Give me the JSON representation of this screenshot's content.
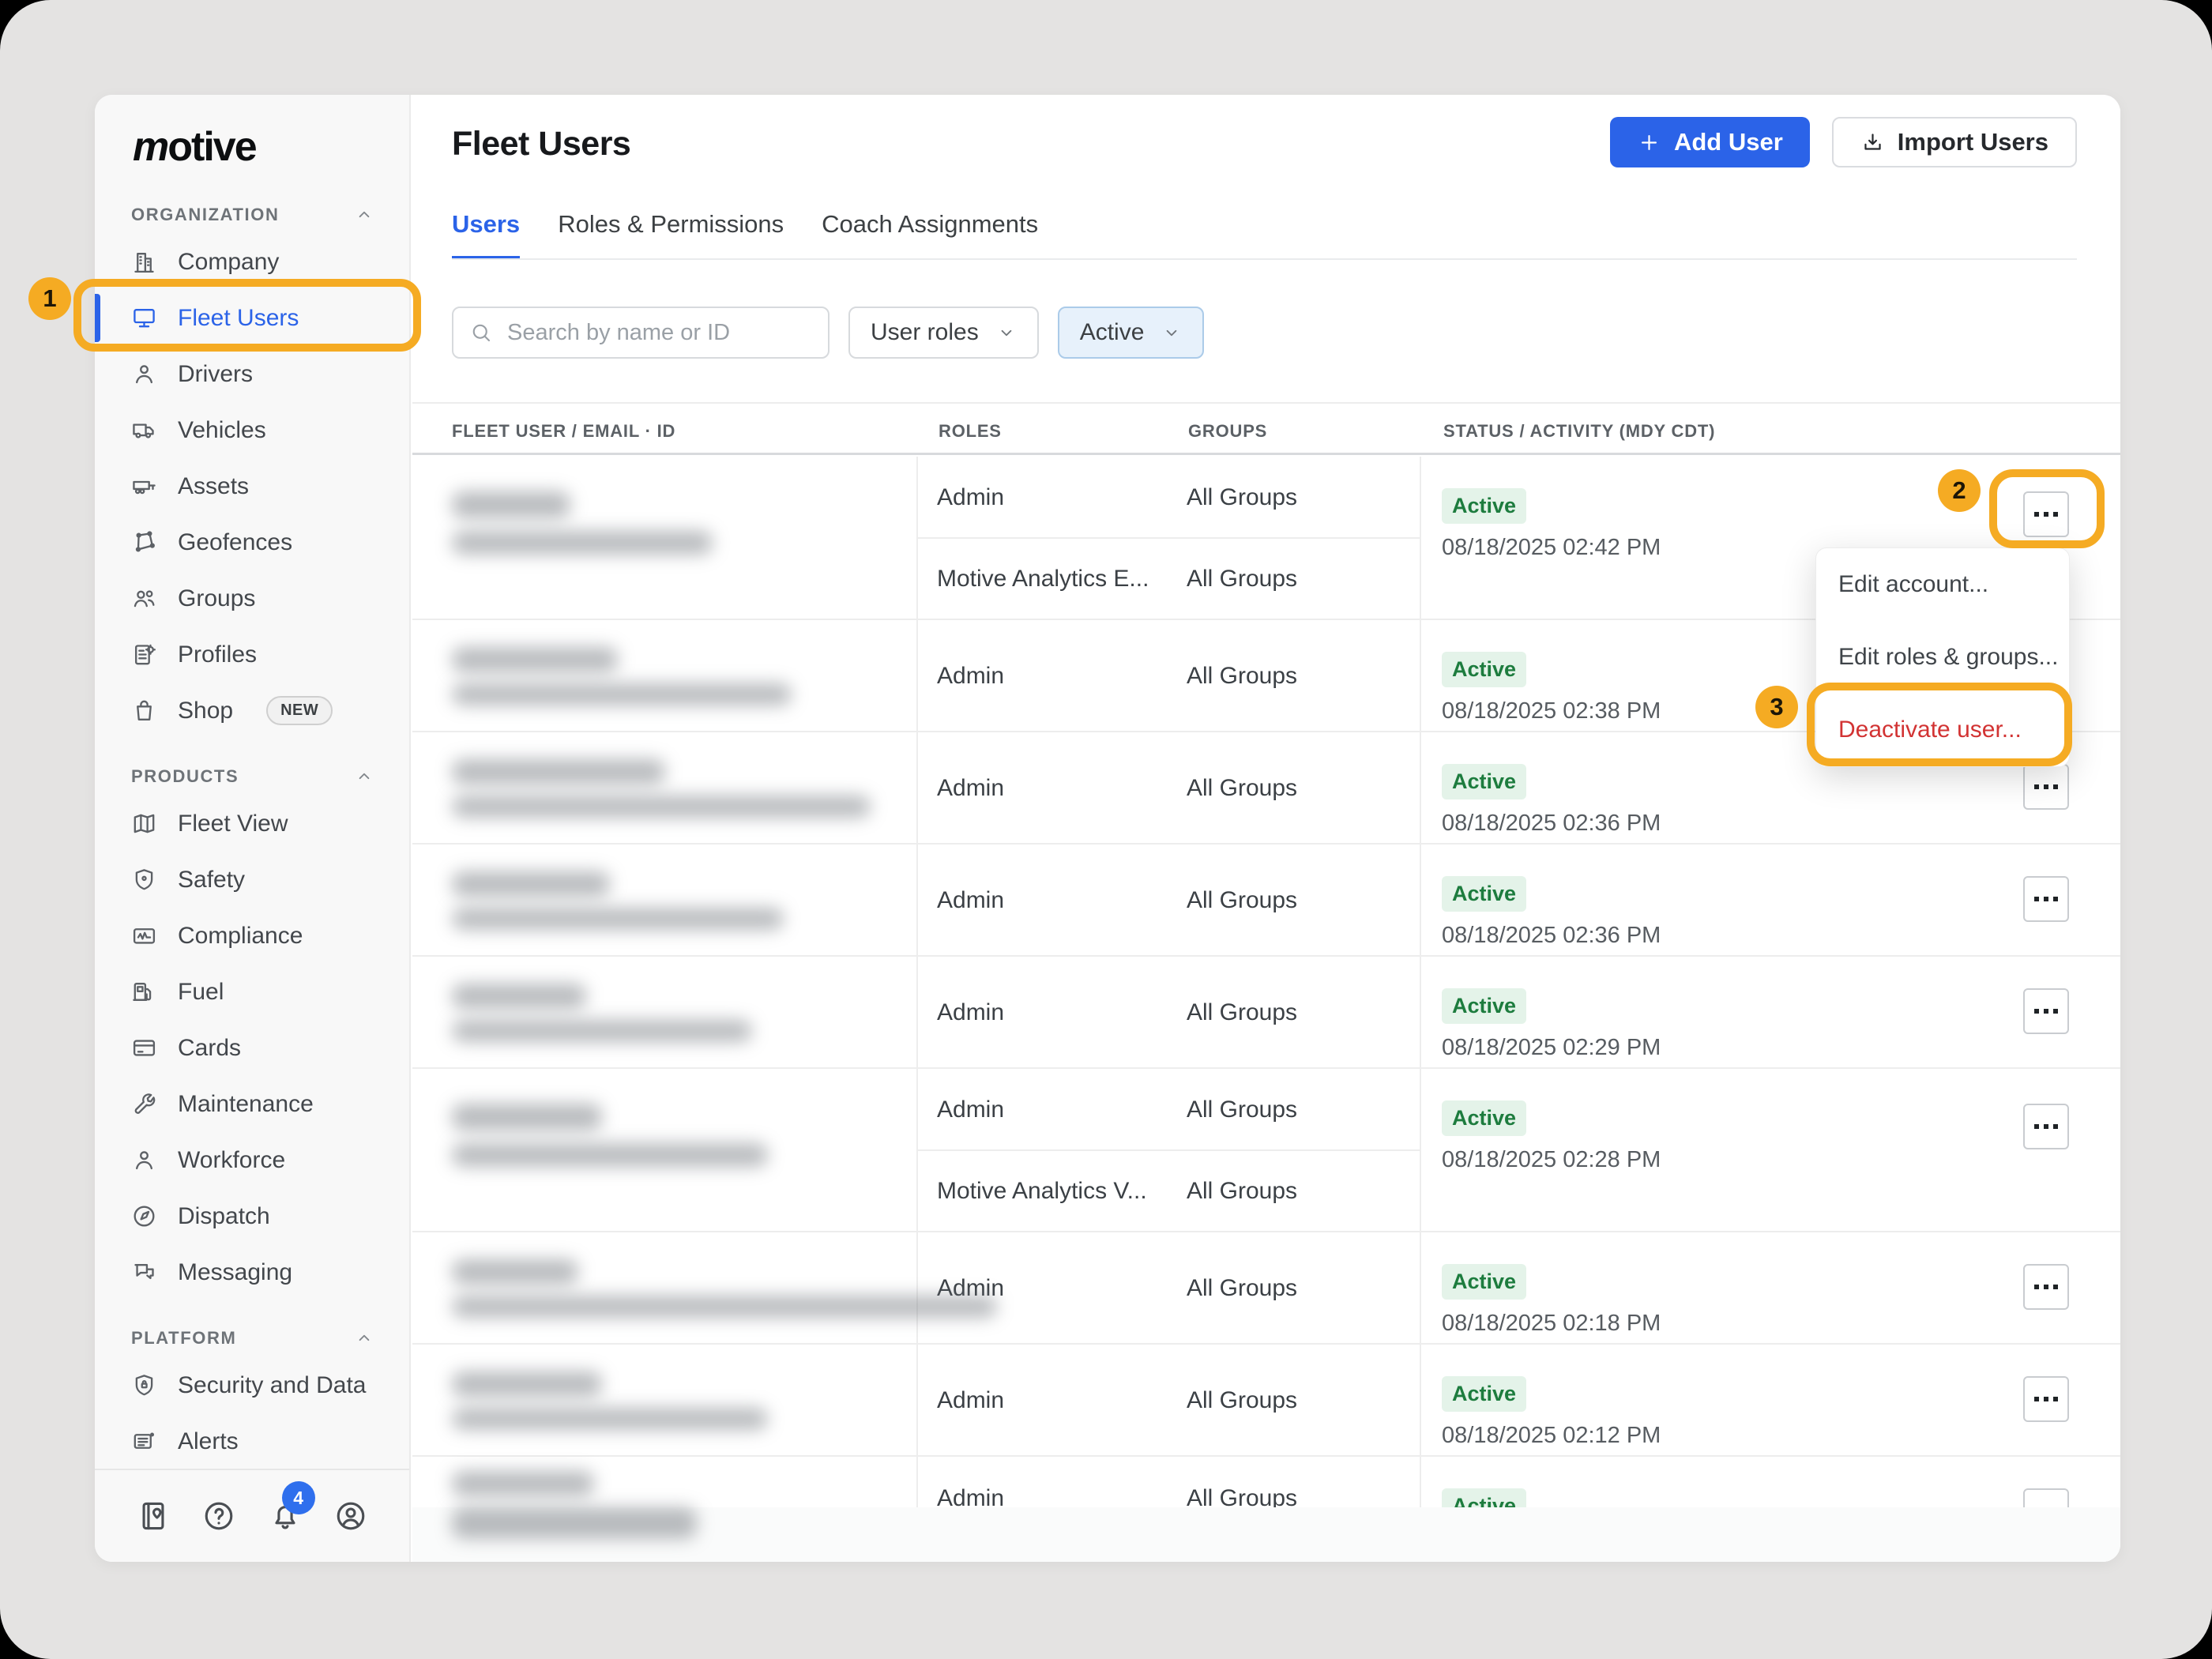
{
  "annotations": {
    "step1": "1",
    "step2": "2",
    "step3": "3",
    "highlight_color": "#f5ab23"
  },
  "sidebar": {
    "logo": "motive",
    "sections": [
      {
        "label": "ORGANIZATION",
        "items": [
          {
            "icon": "company",
            "label": "Company"
          },
          {
            "icon": "fleet-users",
            "label": "Fleet Users",
            "active": true
          },
          {
            "icon": "drivers",
            "label": "Drivers"
          },
          {
            "icon": "vehicles",
            "label": "Vehicles"
          },
          {
            "icon": "assets",
            "label": "Assets"
          },
          {
            "icon": "geofences",
            "label": "Geofences"
          },
          {
            "icon": "groups",
            "label": "Groups"
          },
          {
            "icon": "profiles",
            "label": "Profiles"
          },
          {
            "icon": "shop",
            "label": "Shop",
            "badge": "NEW"
          }
        ]
      },
      {
        "label": "PRODUCTS",
        "items": [
          {
            "icon": "fleet-view",
            "label": "Fleet View"
          },
          {
            "icon": "safety",
            "label": "Safety"
          },
          {
            "icon": "compliance",
            "label": "Compliance"
          },
          {
            "icon": "fuel",
            "label": "Fuel"
          },
          {
            "icon": "cards",
            "label": "Cards"
          },
          {
            "icon": "maintenance",
            "label": "Maintenance"
          },
          {
            "icon": "workforce",
            "label": "Workforce"
          },
          {
            "icon": "dispatch",
            "label": "Dispatch"
          },
          {
            "icon": "messaging",
            "label": "Messaging"
          }
        ]
      },
      {
        "label": "PLATFORM",
        "items": [
          {
            "icon": "security-and-data",
            "label": "Security and Data"
          },
          {
            "icon": "alerts",
            "label": "Alerts"
          }
        ]
      }
    ],
    "footer": {
      "notification_count": "4"
    }
  },
  "header": {
    "title": "Fleet Users",
    "add_user_label": "Add User",
    "import_users_label": "Import Users"
  },
  "tabs": [
    {
      "label": "Users",
      "active": true
    },
    {
      "label": "Roles & Permissions"
    },
    {
      "label": "Coach Assignments"
    }
  ],
  "filters": {
    "search_placeholder": "Search by name or ID",
    "role_filter_label": "User roles",
    "status_filter_label": "Active"
  },
  "table": {
    "columns": [
      "FLEET USER  /  EMAIL  ·  ID",
      "ROLES",
      "GROUPS",
      "STATUS / ACTIVITY (MDY CDT)"
    ],
    "rows": [
      {
        "redacted": true,
        "blur": [
          [
            150,
            34
          ],
          [
            330,
            30
          ]
        ],
        "roles": [
          {
            "role": "Admin",
            "groups": "All Groups"
          },
          {
            "role": "Motive Analytics E...",
            "groups": "All Groups"
          }
        ],
        "status": "Active",
        "activity": "08/18/2025 02:42 PM",
        "kebab": true,
        "kebab_highlighted": true
      },
      {
        "redacted": true,
        "blur": [
          [
            210,
            32
          ],
          [
            430,
            28
          ]
        ],
        "roles": [
          {
            "role": "Admin",
            "groups": "All Groups"
          }
        ],
        "status": "Active",
        "activity": "08/18/2025 02:38 PM",
        "kebab": false,
        "menu_open": true
      },
      {
        "redacted": true,
        "blur": [
          [
            270,
            32
          ],
          [
            530,
            28
          ]
        ],
        "roles": [
          {
            "role": "Admin",
            "groups": "All Groups"
          }
        ],
        "status": "Active",
        "activity": "08/18/2025 02:36 PM",
        "kebab": true
      },
      {
        "redacted": true,
        "blur": [
          [
            200,
            32
          ],
          [
            420,
            28
          ]
        ],
        "roles": [
          {
            "role": "Admin",
            "groups": "All Groups"
          }
        ],
        "status": "Active",
        "activity": "08/18/2025 02:36 PM",
        "kebab": true
      },
      {
        "redacted": true,
        "blur": [
          [
            170,
            32
          ],
          [
            380,
            28
          ]
        ],
        "roles": [
          {
            "role": "Admin",
            "groups": "All Groups"
          }
        ],
        "status": "Active",
        "activity": "08/18/2025 02:29 PM",
        "kebab": true
      },
      {
        "redacted": true,
        "blur": [
          [
            190,
            34
          ],
          [
            400,
            30
          ]
        ],
        "roles": [
          {
            "role": "Admin",
            "groups": "All Groups"
          },
          {
            "role": "Motive Analytics V...",
            "groups": "All Groups"
          }
        ],
        "status": "Active",
        "activity": "08/18/2025 02:28 PM",
        "kebab": true
      },
      {
        "redacted": true,
        "blur": [
          [
            160,
            32
          ],
          [
            690,
            28
          ]
        ],
        "roles": [
          {
            "role": "Admin",
            "groups": "All Groups"
          }
        ],
        "status": "Active",
        "activity": "08/18/2025 02:18 PM",
        "kebab": true
      },
      {
        "redacted": true,
        "blur": [
          [
            190,
            32
          ],
          [
            400,
            28
          ]
        ],
        "roles": [
          {
            "role": "Admin",
            "groups": "All Groups"
          }
        ],
        "status": "Active",
        "activity": "08/18/2025 02:12 PM",
        "kebab": true
      },
      {
        "redacted": true,
        "blur": [
          [
            180,
            32
          ],
          [
            310,
            40
          ]
        ],
        "roles": [
          {
            "role": "Admin",
            "groups": "All Groups"
          }
        ],
        "status": "Active",
        "activity": "",
        "kebab": true,
        "clipped": true
      }
    ]
  },
  "context_menu": {
    "items": [
      {
        "label": "Edit account..."
      },
      {
        "label": "Edit roles & groups..."
      },
      {
        "label": "Deactivate user...",
        "danger": true,
        "highlighted": true
      }
    ]
  }
}
